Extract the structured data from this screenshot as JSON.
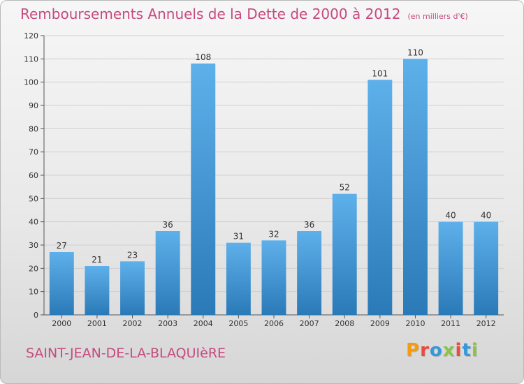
{
  "header": {
    "title": "Remboursements Annuels de la Dette de 2000 à 2012",
    "unit": "(en milliers d'€)"
  },
  "footer": {
    "commune": "SAINT-JEAN-DE-LA-BLAQUIèRE",
    "logo_text": "Proxiti"
  },
  "colors": {
    "title": "#c64a7e",
    "bar_top": "#5eb0ea",
    "bar_bottom": "#2a7ab8",
    "logo": [
      "#f39c12",
      "#e74c3c",
      "#3498db",
      "#8bc34a",
      "#e74c3c",
      "#3498db",
      "#8bc34a"
    ]
  },
  "chart_data": {
    "type": "bar",
    "title": "Remboursements Annuels de la Dette de 2000 à 2012",
    "xlabel": "",
    "ylabel": "",
    "categories": [
      "2000",
      "2001",
      "2002",
      "2003",
      "2004",
      "2005",
      "2006",
      "2007",
      "2008",
      "2009",
      "2010",
      "2011",
      "2012"
    ],
    "values": [
      27,
      21,
      23,
      36,
      108,
      31,
      32,
      36,
      52,
      101,
      110,
      40,
      40
    ],
    "ylim": [
      0,
      120
    ],
    "yticks": [
      0,
      10,
      20,
      30,
      40,
      50,
      60,
      70,
      80,
      90,
      100,
      110,
      120
    ],
    "grid": true,
    "data_labels": true,
    "legend": "none"
  }
}
